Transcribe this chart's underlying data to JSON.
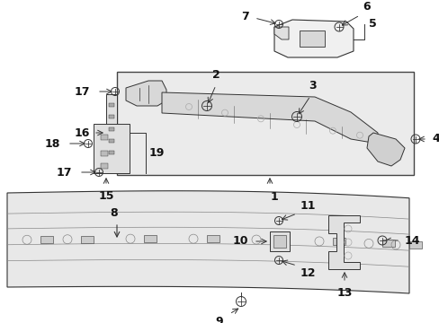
{
  "bg_color": "#ffffff",
  "box_bg": "#e8e8e8",
  "line_color": "#333333",
  "label_color": "#111111",
  "fig_w": 4.89,
  "fig_h": 3.6,
  "dpi": 100
}
